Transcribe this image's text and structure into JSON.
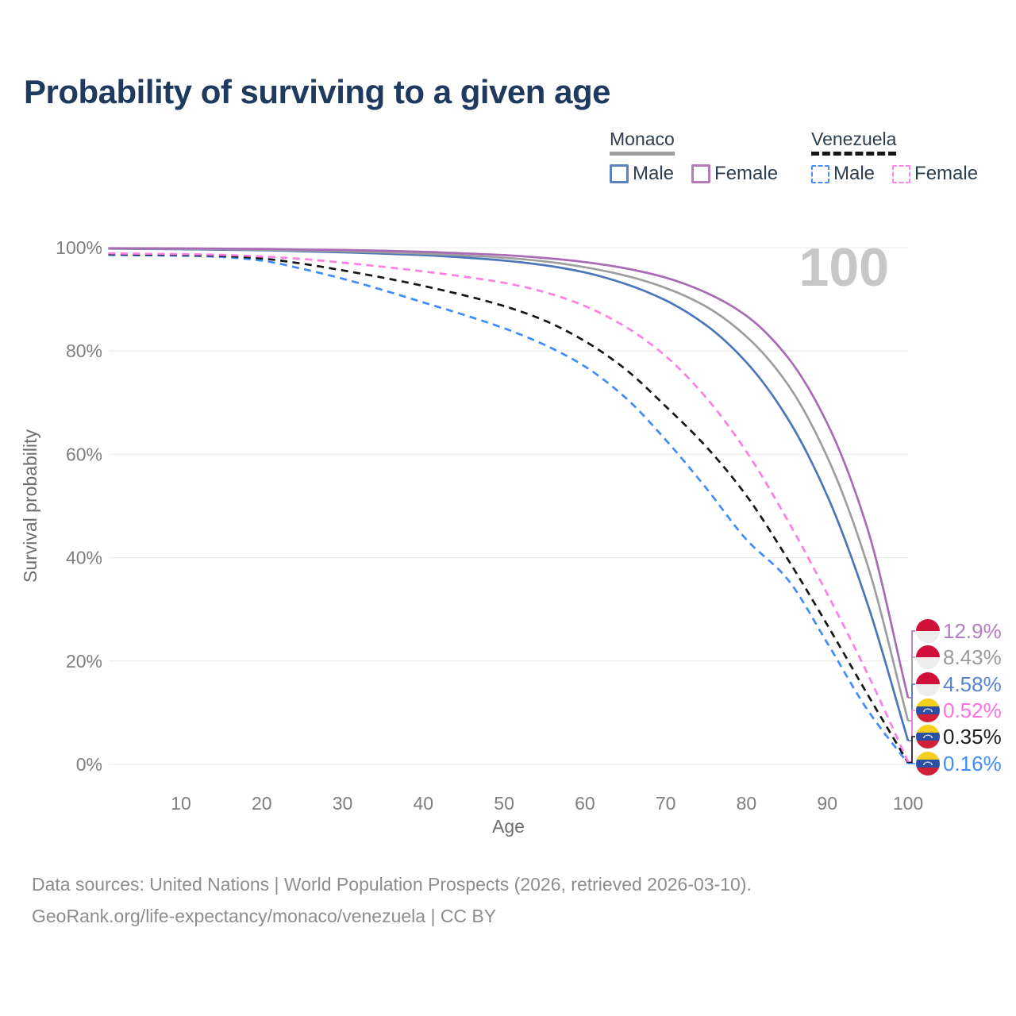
{
  "title": "Probability of surviving to a given age",
  "watermark_age": "100",
  "legend": {
    "groups": [
      {
        "label": "Monaco",
        "line_style": "solid",
        "line_color": "#9e9e9e",
        "items": [
          {
            "label": "Male",
            "color": "#5b83c0",
            "dash": false
          },
          {
            "label": "Female",
            "color": "#b87ab8",
            "dash": false
          }
        ]
      },
      {
        "label": "Venezuela",
        "line_style": "dashed",
        "line_color": "#161616",
        "items": [
          {
            "label": "Male",
            "color": "#4a90f5",
            "dash": true
          },
          {
            "label": "Female",
            "color": "#ff85e8",
            "dash": true
          }
        ]
      }
    ]
  },
  "footer": {
    "line1": "Data sources: United Nations | World Population Prospects (2026, retrieved 2026-03-10).",
    "line2": "GeoRank.org/life-expectancy/monaco/venezuela | CC BY"
  },
  "flags": {
    "monaco": {
      "top": "#d0103a",
      "bottom": "#ededed"
    },
    "venezuela": {
      "top": "#f5cf1f",
      "mid": "#2b4fa2",
      "bottom": "#d02137",
      "stars": "#ffffff"
    }
  },
  "colors": {
    "grid": "#ececec",
    "tick_text": "#7e7e7e",
    "axis_title_text": "#6e6e6e",
    "watermark": "#c7c7c7",
    "title_text": "#1f3a5f",
    "legend_text": "#2c3e50",
    "footer_text": "#8d8d8d"
  },
  "chart_data": {
    "type": "line",
    "title": "Probability of surviving to a given age",
    "xlabel": "Age",
    "ylabel": "Survival probability",
    "xlim": [
      1,
      100
    ],
    "ylim": [
      0,
      100
    ],
    "grid": true,
    "legend_position": "top-right",
    "x_ticks": [
      10,
      20,
      30,
      40,
      50,
      60,
      70,
      80,
      90,
      100
    ],
    "y_ticks": [
      {
        "value": 0,
        "label": "0%"
      },
      {
        "value": 20,
        "label": "20%"
      },
      {
        "value": 40,
        "label": "40%"
      },
      {
        "value": 60,
        "label": "60%"
      },
      {
        "value": 80,
        "label": "80%"
      },
      {
        "value": 100,
        "label": "100%"
      }
    ],
    "ages": [
      1,
      5,
      10,
      15,
      20,
      25,
      30,
      35,
      40,
      45,
      50,
      55,
      60,
      65,
      70,
      75,
      80,
      85,
      90,
      95,
      100
    ],
    "series": [
      {
        "name": "Monaco Female",
        "country": "Monaco",
        "sex": "Female",
        "style": "solid",
        "color": "#a96bb5",
        "flag": "monaco",
        "end_label": "12.9%",
        "end_label_color": "#b57cc8",
        "values": [
          99.9,
          99.87,
          99.85,
          99.8,
          99.75,
          99.65,
          99.55,
          99.4,
          99.2,
          98.9,
          98.55,
          98.0,
          97.2,
          96.0,
          94.2,
          91.3,
          86.8,
          79.0,
          66.0,
          45.5,
          12.9
        ]
      },
      {
        "name": "Monaco Both sexes",
        "country": "Monaco",
        "sex": "Both",
        "style": "solid",
        "color": "#9e9e9e",
        "flag": "monaco",
        "end_label": "8.43%",
        "end_label_color": "#9a9a9a",
        "values": [
          99.85,
          99.8,
          99.75,
          99.7,
          99.6,
          99.45,
          99.3,
          99.1,
          98.85,
          98.5,
          98.05,
          97.35,
          96.2,
          94.6,
          92.2,
          88.6,
          82.8,
          73.8,
          59.5,
          38.5,
          8.43
        ]
      },
      {
        "name": "Monaco Male",
        "country": "Monaco",
        "sex": "Male",
        "style": "solid",
        "color": "#4a76ba",
        "flag": "monaco",
        "end_label": "4.58%",
        "end_label_color": "#5584d3",
        "values": [
          99.8,
          99.75,
          99.7,
          99.6,
          99.5,
          99.3,
          99.1,
          98.85,
          98.55,
          98.1,
          97.5,
          96.6,
          95.2,
          93.0,
          89.8,
          85.0,
          77.8,
          67.2,
          52.0,
          31.0,
          4.58
        ]
      },
      {
        "name": "Venezuela Female",
        "country": "Venezuela",
        "sex": "Female",
        "style": "dashed",
        "color": "#ff7ee3",
        "flag": "venezuela",
        "end_label": "0.52%",
        "end_label_color": "#ff70e0",
        "values": [
          98.9,
          98.82,
          98.75,
          98.6,
          98.3,
          97.8,
          97.1,
          96.3,
          95.4,
          94.4,
          93.2,
          91.4,
          88.7,
          84.7,
          79.0,
          71.0,
          60.5,
          47.5,
          33.0,
          17.5,
          0.52
        ]
      },
      {
        "name": "Venezuela Both sexes",
        "country": "Venezuela",
        "sex": "Both",
        "style": "dashed",
        "color": "#161616",
        "flag": "venezuela",
        "end_label": "0.35%",
        "end_label_color": "#1d1d1d",
        "values": [
          98.75,
          98.68,
          98.6,
          98.4,
          97.9,
          96.9,
          95.6,
          94.2,
          92.6,
          90.8,
          88.7,
          85.9,
          81.9,
          76.5,
          69.3,
          61.5,
          52.0,
          40.0,
          27.0,
          13.5,
          0.35
        ]
      },
      {
        "name": "Venezuela Male",
        "country": "Venezuela",
        "sex": "Male",
        "style": "dashed",
        "color": "#3f8cfa",
        "flag": "venezuela",
        "end_label": "0.16%",
        "end_label_color": "#3f8cfa",
        "values": [
          98.6,
          98.52,
          98.45,
          98.2,
          97.5,
          95.9,
          94.0,
          91.8,
          89.4,
          87.0,
          84.4,
          81.2,
          77.0,
          71.0,
          62.8,
          53.5,
          43.5,
          36.0,
          23.5,
          10.5,
          0.16
        ]
      }
    ]
  }
}
